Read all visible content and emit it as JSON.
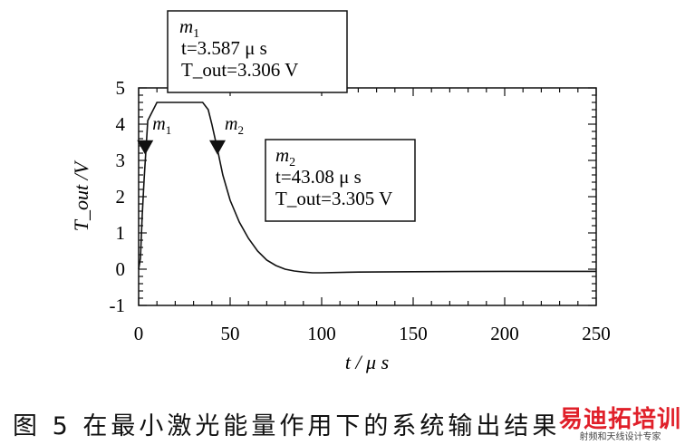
{
  "chart_data": {
    "type": "line",
    "xlabel": "t / μ s",
    "ylabel": "T_out /V",
    "xlim": [
      0,
      250
    ],
    "ylim": [
      -1,
      5
    ],
    "x_ticks": [
      "0",
      "50",
      "100",
      "150",
      "200",
      "250"
    ],
    "y_ticks": [
      "-1",
      "0",
      "1",
      "2",
      "3",
      "4",
      "5"
    ],
    "grid": false,
    "series": [
      {
        "color": "#111111",
        "x": [
          0,
          1,
          2,
          3,
          5,
          10,
          20,
          35,
          38,
          40,
          43.08,
          46,
          50,
          55,
          60,
          65,
          70,
          75,
          80,
          85,
          90,
          95,
          100,
          120,
          150,
          200,
          250
        ],
        "y": [
          0,
          0.3,
          1.5,
          2.5,
          4.1,
          4.6,
          4.6,
          4.6,
          4.4,
          4.0,
          3.305,
          2.6,
          1.9,
          1.3,
          0.85,
          0.5,
          0.25,
          0.1,
          0.0,
          -0.05,
          -0.08,
          -0.1,
          -0.1,
          -0.08,
          -0.07,
          -0.06,
          -0.06
        ]
      }
    ],
    "markers": [
      {
        "label": "m",
        "sub": "1",
        "x": 3.587,
        "y": 3.306
      },
      {
        "label": "m",
        "sub": "2",
        "x": 43.08,
        "y": 3.305
      }
    ],
    "annotations": [
      {
        "title": "m",
        "sub": "1",
        "line1": "t=3.587 μ s",
        "line2": "T_out=3.306 V"
      },
      {
        "title": "m",
        "sub": "2",
        "line1": "t=43.08 μ s",
        "line2": "T_out=3.305 V"
      }
    ]
  },
  "caption": "图 5   在最小激光能量作用下的系统输出结果",
  "watermark": {
    "main": "易迪拓培训",
    "sub": "射频和天线设计专家"
  }
}
